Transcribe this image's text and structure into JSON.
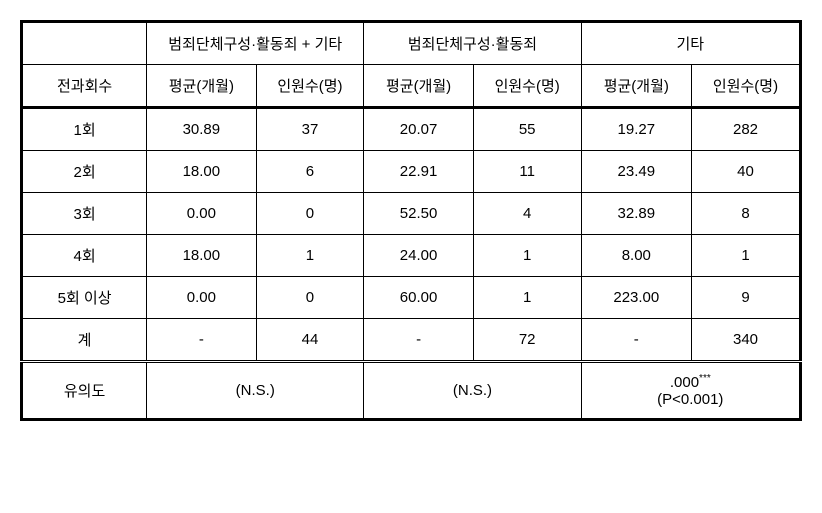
{
  "table": {
    "headers": {
      "group1": "범죄단체구성·활동죄 + 기타",
      "group2": "범죄단체구성·활동죄",
      "group3": "기타",
      "rowheader": "전과회수",
      "avg": "평균(개월)",
      "count": "인원수(명)"
    },
    "rows": [
      {
        "label": "1회",
        "g1_avg": "30.89",
        "g1_cnt": "37",
        "g2_avg": "20.07",
        "g2_cnt": "55",
        "g3_avg": "19.27",
        "g3_cnt": "282"
      },
      {
        "label": "2회",
        "g1_avg": "18.00",
        "g1_cnt": "6",
        "g2_avg": "22.91",
        "g2_cnt": "11",
        "g3_avg": "23.49",
        "g3_cnt": "40"
      },
      {
        "label": "3회",
        "g1_avg": "0.00",
        "g1_cnt": "0",
        "g2_avg": "52.50",
        "g2_cnt": "4",
        "g3_avg": "32.89",
        "g3_cnt": "8"
      },
      {
        "label": "4회",
        "g1_avg": "18.00",
        "g1_cnt": "1",
        "g2_avg": "24.00",
        "g2_cnt": "1",
        "g3_avg": "8.00",
        "g3_cnt": "1"
      },
      {
        "label": "5회 이상",
        "g1_avg": "0.00",
        "g1_cnt": "0",
        "g2_avg": "60.00",
        "g2_cnt": "1",
        "g3_avg": "223.00",
        "g3_cnt": "9"
      },
      {
        "label": "계",
        "g1_avg": "-",
        "g1_cnt": "44",
        "g2_avg": "-",
        "g2_cnt": "72",
        "g3_avg": "-",
        "g3_cnt": "340"
      }
    ],
    "sig": {
      "label": "유의도",
      "g1": "(N.S.)",
      "g2": "(N.S.)",
      "g3_val": ".000",
      "g3_stars": "***",
      "g3_p": "(P<0.001)"
    }
  }
}
